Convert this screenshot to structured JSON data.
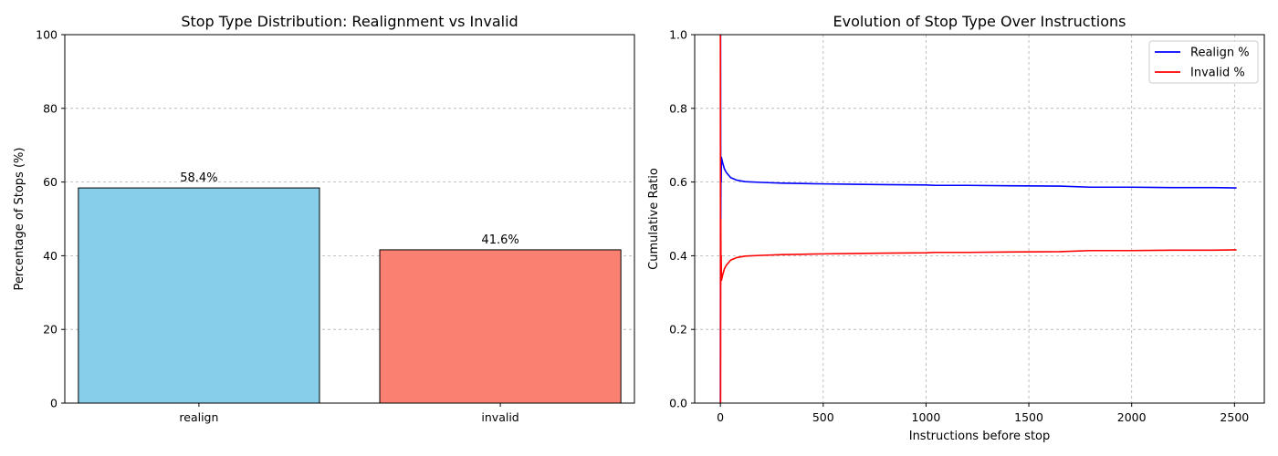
{
  "chart_data": [
    {
      "type": "bar",
      "title": "Stop Type Distribution: Realignment vs Invalid",
      "xlabel": "",
      "ylabel": "Percentage of Stops (%)",
      "categories": [
        "realign",
        "invalid"
      ],
      "values": [
        58.4,
        41.6
      ],
      "value_labels": [
        "58.4%",
        "41.6%"
      ],
      "colors": [
        "#87CEEB",
        "#FA8072"
      ],
      "ylim": [
        0,
        100
      ],
      "yticks": [
        0,
        20,
        40,
        60,
        80,
        100
      ],
      "grid": "y"
    },
    {
      "type": "line",
      "title": "Evolution of Stop Type Over Instructions",
      "xlabel": "Instructions before stop",
      "ylabel": "Cumulative Ratio",
      "xlim": [
        -125,
        2645
      ],
      "ylim": [
        0,
        1
      ],
      "xticks": [
        0,
        500,
        1000,
        1500,
        2000,
        2500
      ],
      "yticks": [
        0.0,
        0.2,
        0.4,
        0.6,
        0.8,
        1.0
      ],
      "grid": "both",
      "legend": "top-right",
      "series": [
        {
          "name": "Realign %",
          "color": "#0000FF",
          "x": [
            0,
            1,
            2,
            3,
            4,
            5,
            8,
            12,
            20,
            30,
            50,
            80,
            120,
            200,
            300,
            400,
            500,
            650,
            800,
            1000,
            1050,
            1200,
            1400,
            1650,
            1800,
            2000,
            2200,
            2400,
            2510
          ],
          "y": [
            0.0,
            1.0,
            0.5,
            0.667,
            0.6,
            0.667,
            0.66,
            0.65,
            0.635,
            0.625,
            0.612,
            0.605,
            0.601,
            0.599,
            0.597,
            0.596,
            0.595,
            0.594,
            0.593,
            0.592,
            0.591,
            0.591,
            0.59,
            0.589,
            0.586,
            0.586,
            0.585,
            0.585,
            0.584
          ]
        },
        {
          "name": "Invalid %",
          "color": "#FF0000",
          "x": [
            0,
            1,
            2,
            3,
            4,
            5,
            8,
            12,
            20,
            30,
            50,
            80,
            120,
            200,
            300,
            400,
            500,
            650,
            800,
            1000,
            1050,
            1200,
            1400,
            1650,
            1800,
            2000,
            2200,
            2400,
            2510
          ],
          "y": [
            1.0,
            0.0,
            0.5,
            0.333,
            0.4,
            0.333,
            0.34,
            0.35,
            0.365,
            0.375,
            0.388,
            0.395,
            0.399,
            0.401,
            0.403,
            0.404,
            0.405,
            0.406,
            0.407,
            0.408,
            0.409,
            0.409,
            0.41,
            0.411,
            0.414,
            0.414,
            0.415,
            0.415,
            0.416
          ]
        }
      ]
    }
  ]
}
